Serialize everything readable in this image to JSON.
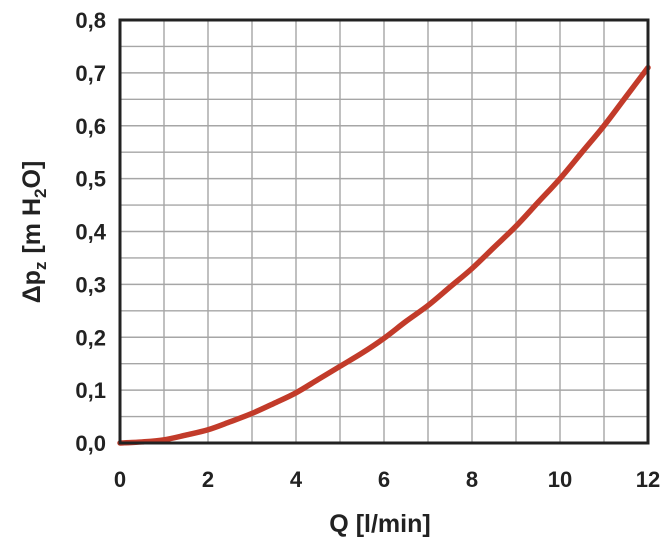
{
  "chart_data": {
    "type": "line",
    "xlabel": "Q [l/min]",
    "ylabel": {
      "delta": "Δ",
      "var": "p",
      "var_sub": "z",
      "unit_open": "[m H",
      "unit_sub": "2",
      "unit_close": "O]"
    },
    "xlim": [
      0,
      12
    ],
    "ylim": [
      0,
      0.8
    ],
    "x_ticks": [
      "0",
      "2",
      "4",
      "6",
      "8",
      "10",
      "12"
    ],
    "y_ticks": [
      "0,0",
      "0,1",
      "0,2",
      "0,3",
      "0,4",
      "0,5",
      "0,6",
      "0,7",
      "0,8"
    ],
    "grid": true,
    "grid_minor_x_step": 1,
    "grid_minor_y_step": 0.05,
    "series": [
      {
        "color": "#c23b2a",
        "x": [
          0,
          0.5,
          1,
          1.5,
          2,
          2.5,
          3,
          3.5,
          4,
          4.5,
          5,
          5.5,
          6,
          6.5,
          7,
          7.5,
          8,
          8.5,
          9,
          9.5,
          10,
          10.5,
          11,
          11.5,
          12
        ],
        "y": [
          0,
          0.002,
          0.006,
          0.015,
          0.025,
          0.04,
          0.056,
          0.075,
          0.095,
          0.12,
          0.145,
          0.17,
          0.198,
          0.23,
          0.26,
          0.295,
          0.33,
          0.37,
          0.41,
          0.455,
          0.5,
          0.55,
          0.6,
          0.655,
          0.71
        ]
      }
    ]
  },
  "colors": {
    "grid": "#a6a6a6",
    "frame": "#222222",
    "text": "#222222"
  }
}
